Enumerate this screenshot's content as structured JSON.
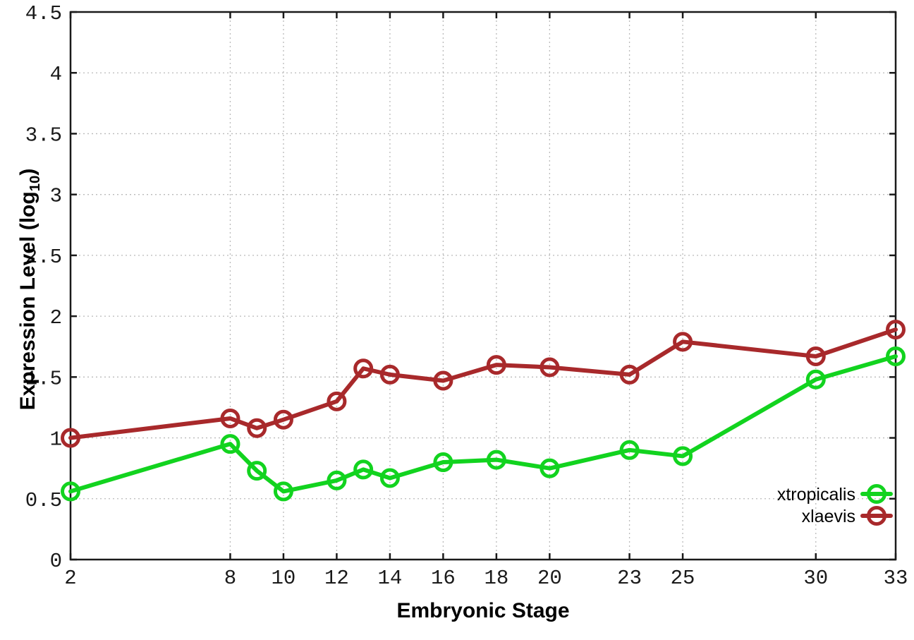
{
  "chart_data": {
    "type": "line",
    "title": "",
    "xlabel": "Embryonic Stage",
    "ylabel": {
      "text": "Expression Level (log10)",
      "main": "Expression Level (log",
      "sub": "10",
      "suffix": ")"
    },
    "x": [
      2,
      8,
      9,
      10,
      12,
      13,
      14,
      16,
      18,
      20,
      23,
      25,
      30,
      33
    ],
    "series": [
      {
        "name": "xtropicalis",
        "color": "#12d31f",
        "values": [
          0.56,
          0.95,
          0.73,
          0.56,
          0.65,
          0.74,
          0.67,
          0.8,
          0.82,
          0.75,
          0.9,
          0.85,
          1.48,
          1.67
        ]
      },
      {
        "name": "xlaevis",
        "color": "#a8292b",
        "values": [
          1.0,
          1.16,
          1.08,
          1.15,
          1.3,
          1.57,
          1.52,
          1.47,
          1.6,
          1.58,
          1.52,
          1.79,
          1.67,
          1.89
        ]
      }
    ],
    "x_ticks": [
      2,
      8,
      10,
      12,
      14,
      16,
      18,
      20,
      23,
      25,
      30,
      33
    ],
    "y_ticks": [
      0,
      0.5,
      1,
      1.5,
      2,
      2.5,
      3,
      3.5,
      4,
      4.5
    ],
    "xlim": [
      2,
      33
    ],
    "ylim": [
      0,
      4.5
    ],
    "grid": true,
    "marker": "open-circle",
    "legend_position": "bottom-right"
  },
  "colors": {
    "background": "#ffffff",
    "axis": "#1a1a1a",
    "grid": "#bababa",
    "tick_text": "#1a1a1a",
    "legend_text": "#000000"
  }
}
